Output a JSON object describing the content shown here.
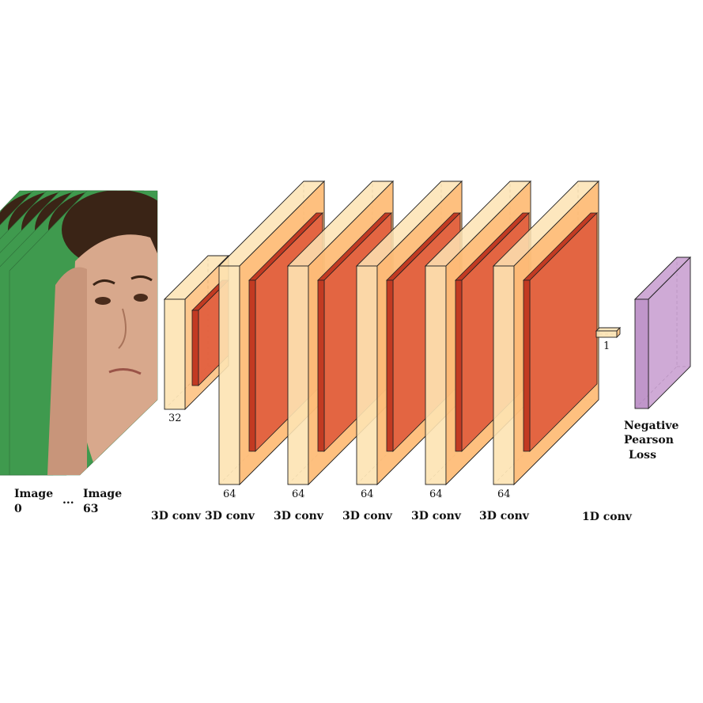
{
  "input": {
    "first_frame_label": [
      "Image",
      "0"
    ],
    "ellipsis": "...",
    "last_frame_label": [
      "Image",
      "63"
    ],
    "frame_count_drawn": 6,
    "background_color": "#3f9a4e",
    "skin_color": "#d8a88c",
    "hair_color": "#3a2416"
  },
  "layers": [
    {
      "name": "3D conv",
      "channels": "32"
    },
    {
      "name": "3D conv",
      "channels": "64"
    },
    {
      "name": "3D conv",
      "channels": "64"
    },
    {
      "name": "3D conv",
      "channels": "64"
    },
    {
      "name": "3D conv",
      "channels": "64"
    },
    {
      "name": "3D conv",
      "channels": "64"
    },
    {
      "name": "1D conv",
      "channels": "1"
    }
  ],
  "loss": {
    "label": [
      "Negative",
      "Pearson",
      "Loss"
    ]
  },
  "colors": {
    "block_light": "#fde3b3",
    "block_mid": "#fdbe7a",
    "block_side": "#f7ac66",
    "activation": "#e2603f",
    "activation_edge": "#c23a22",
    "loss_front": "#b98bc4",
    "loss_side": "#c79bcf"
  }
}
